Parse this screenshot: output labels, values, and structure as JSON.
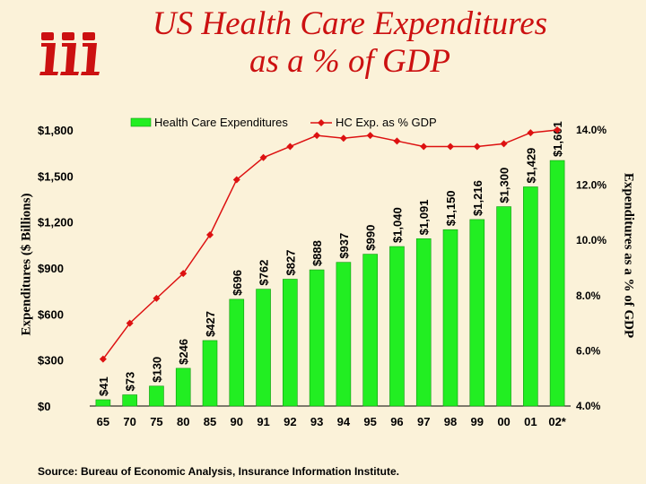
{
  "page": {
    "title_line1": "US Health Care Expenditures",
    "title_line2": "as a % of GDP",
    "source": "Source:  Bureau of Economic Analysis, Insurance Information Institute.",
    "logo": "iii",
    "colors": {
      "title": "#CC1111",
      "bar": "#22EE22",
      "bar_edge": "#119911",
      "line": "#DD1111",
      "background": "#FBF2D9"
    }
  },
  "chart_data": {
    "type": "bar",
    "title": "US Health Care Expenditures as a % of GDP",
    "categories": [
      "65",
      "70",
      "75",
      "80",
      "85",
      "90",
      "91",
      "92",
      "93",
      "94",
      "95",
      "96",
      "97",
      "98",
      "99",
      "00",
      "01",
      "02*"
    ],
    "series": [
      {
        "name": "Health Care Expenditures",
        "type": "bar",
        "axis": "left",
        "values": [
          41,
          73,
          130,
          246,
          427,
          696,
          762,
          827,
          888,
          937,
          990,
          1040,
          1091,
          1150,
          1216,
          1300,
          1429,
          1601
        ],
        "labels": [
          "$41",
          "$73",
          "$130",
          "$246",
          "$427",
          "$696",
          "$762",
          "$827",
          "$888",
          "$937",
          "$990",
          "$1,040",
          "$1,091",
          "$1,150",
          "$1,216",
          "$1,300",
          "$1,429",
          "$1,601"
        ]
      },
      {
        "name": "HC Exp. as % GDP",
        "type": "line",
        "axis": "right",
        "values": [
          5.7,
          7.0,
          7.9,
          8.8,
          10.2,
          12.2,
          13.0,
          13.4,
          13.8,
          13.7,
          13.8,
          13.6,
          13.4,
          13.4,
          13.4,
          13.5,
          13.9,
          14.0
        ]
      }
    ],
    "ylabel": "Expenditures ($ Billions)",
    "y2label": "Expenditures as a % of GDP",
    "ylim": [
      0,
      1800
    ],
    "y2lim": [
      4.0,
      14.0
    ],
    "yticks": [
      0,
      300,
      600,
      900,
      1200,
      1500,
      1800
    ],
    "ytick_labels": [
      "$0",
      "$300",
      "$600",
      "$900",
      "$1,200",
      "$1,500",
      "$1,800"
    ],
    "y2ticks": [
      4,
      6,
      8,
      10,
      12,
      14
    ],
    "y2tick_labels": [
      "4.0%",
      "6.0%",
      "8.0%",
      "10.0%",
      "12.0%",
      "14.0%"
    ],
    "legend": [
      "Health Care Expenditures",
      "HC Exp. as % GDP"
    ],
    "legend_position": "top",
    "grid": false
  }
}
